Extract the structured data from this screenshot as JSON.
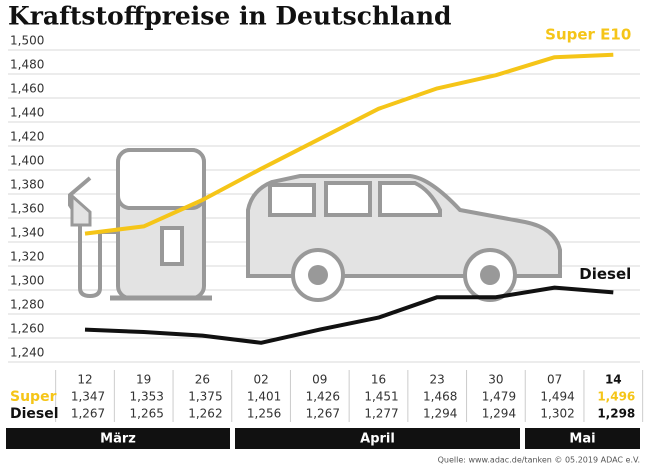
{
  "chart_data": {
    "type": "line",
    "title": "Kraftstoffpreise in Deutschland",
    "categories": [
      "12",
      "19",
      "26",
      "02",
      "09",
      "16",
      "23",
      "30",
      "07",
      "14"
    ],
    "months": [
      "März",
      "April",
      "Mai"
    ],
    "row_labels": [
      "Super",
      "Diesel"
    ],
    "series": [
      {
        "name": "Super E10",
        "color": "#f5c518",
        "values": [
          1.347,
          1.353,
          1.375,
          1.401,
          1.426,
          1.451,
          1.468,
          1.479,
          1.494,
          1.496
        ],
        "value_labels": [
          "1,347",
          "1,353",
          "1,375",
          "1,401",
          "1,426",
          "1,451",
          "1,468",
          "1,479",
          "1,494",
          "1,496"
        ]
      },
      {
        "name": "Diesel",
        "color": "#111111",
        "values": [
          1.267,
          1.265,
          1.262,
          1.256,
          1.267,
          1.277,
          1.294,
          1.294,
          1.302,
          1.298
        ],
        "value_labels": [
          "1,267",
          "1,265",
          "1,262",
          "1,256",
          "1,267",
          "1,277",
          "1,294",
          "1,294",
          "1,302",
          "1,298"
        ]
      }
    ],
    "ylim": [
      1.24,
      1.5
    ],
    "yticks": [
      {
        "value": 1.24,
        "label": "1,240"
      },
      {
        "value": 1.26,
        "label": "1,260"
      },
      {
        "value": 1.28,
        "label": "1,280"
      },
      {
        "value": 1.3,
        "label": "1,300"
      },
      {
        "value": 1.32,
        "label": "1,320"
      },
      {
        "value": 1.34,
        "label": "1,340"
      },
      {
        "value": 1.36,
        "label": "1,360"
      },
      {
        "value": 1.38,
        "label": "1,380"
      },
      {
        "value": 1.4,
        "label": "1,400"
      },
      {
        "value": 1.42,
        "label": "1,420"
      },
      {
        "value": 1.44,
        "label": "1,440"
      },
      {
        "value": 1.46,
        "label": "1,460"
      },
      {
        "value": 1.48,
        "label": "1,480"
      },
      {
        "value": 1.5,
        "label": "1,500"
      }
    ],
    "grid": true,
    "source": "Quelle: www.adac.de/tanken  © 05.2019  ADAC e.V."
  }
}
